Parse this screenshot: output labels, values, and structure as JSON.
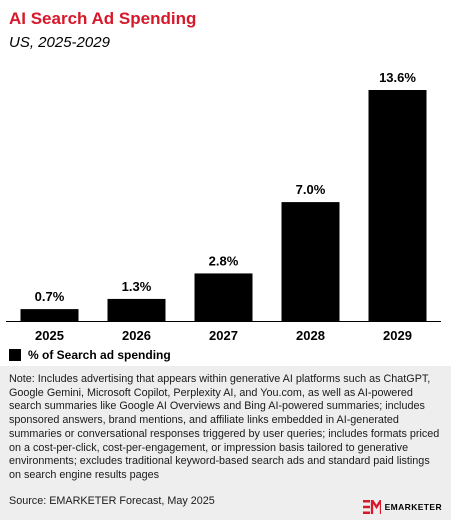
{
  "header": {
    "title": "AI Search Ad Spending",
    "subtitle": "US, 2025-2029"
  },
  "chart_data": {
    "type": "bar",
    "categories": [
      "2025",
      "2026",
      "2027",
      "2028",
      "2029"
    ],
    "values": [
      0.7,
      1.3,
      2.8,
      7.0,
      13.6
    ],
    "data_labels": [
      "0.7%",
      "1.3%",
      "2.8%",
      "7.0%",
      "13.6%"
    ],
    "legend": [
      "% of Search ad spending"
    ],
    "legend_position": "bottom-left",
    "ylim": [
      0,
      13.6
    ],
    "grid": false,
    "bar_color": "#000000"
  },
  "footer": {
    "note": "Note: Includes advertising that appears within generative AI platforms such as ChatGPT, Google Gemini, Microsoft Copilot, Perplexity AI, and You.com, as well as AI-powered search summaries like Google AI Overviews and Bing AI-powered summaries; includes sponsored answers, brand mentions, and affiliate links embedded in AI-generated summaries or conversational responses triggered by user queries; includes formats priced on a cost-per-click, cost-per-engagement, or impression basis tailored to generative environments; excludes traditional keyword-based search ads and standard paid listings on search engine results pages",
    "source": "Source: EMARKETER Forecast, May 2025",
    "brand": "EMARKETER"
  },
  "colors": {
    "title": "#d7182a",
    "brand_accent": "#d7182a",
    "note_background": "#eeeeee"
  }
}
